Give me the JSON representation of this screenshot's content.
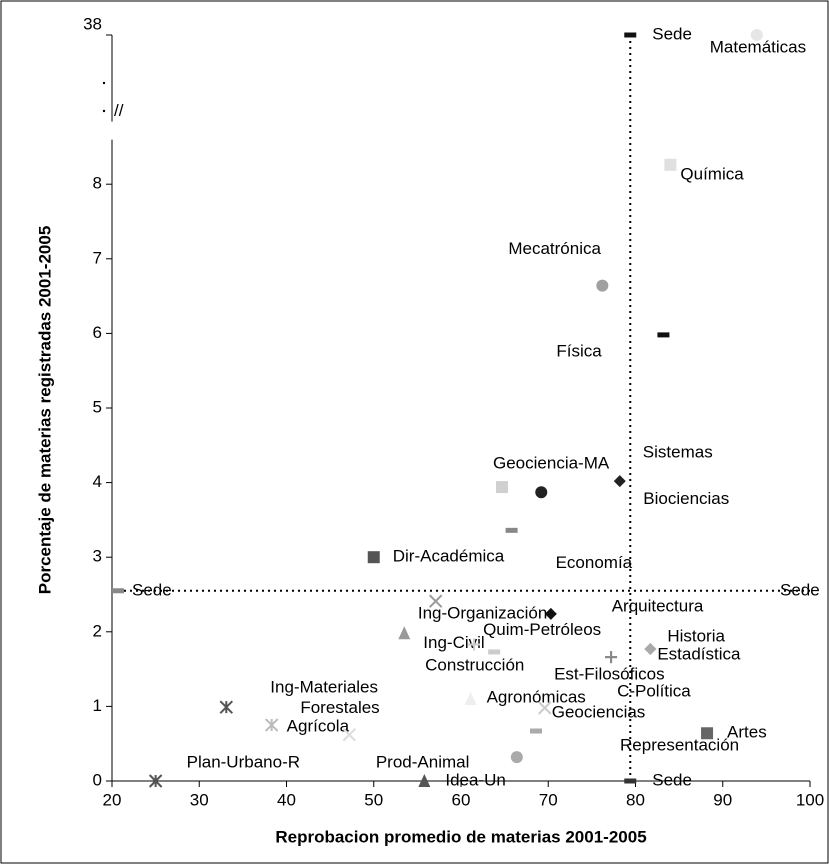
{
  "chart_data": {
    "type": "scatter",
    "x_label": "Reprobacion promedio de materias 2001-2005",
    "y_label": "Porcentaje de materias registradas 2001-2005",
    "xlim": [
      20,
      100
    ],
    "xticks": [
      20,
      30,
      40,
      50,
      60,
      70,
      80,
      90,
      100
    ],
    "ylim": [
      0,
      38
    ],
    "yticks": [
      0,
      1,
      2,
      3,
      4,
      5,
      6,
      7,
      8,
      38
    ],
    "y_break": [
      9,
      37
    ],
    "y_break_label": "//",
    "reference": {
      "x": 79.4,
      "y": 2.55,
      "label": "Sede"
    },
    "points": [
      {
        "name": "Matemáticas",
        "x": 93.9,
        "y": 38,
        "marker": "circle",
        "color": "#e6e6e6"
      },
      {
        "name": "Química",
        "x": 84.0,
        "y": 8.26,
        "marker": "square",
        "color": "#e0e0e0"
      },
      {
        "name": "Mecatrónica",
        "x": 76.2,
        "y": 6.64,
        "marker": "circle",
        "color": "#a0a0a0"
      },
      {
        "name": "Física",
        "x": 83.2,
        "y": 5.98,
        "marker": "dash",
        "color": "#111111"
      },
      {
        "name": "Sistemas",
        "x": 78.2,
        "y": 4.02,
        "marker": "diamond",
        "color": "#222222"
      },
      {
        "name": "Geociencia-MA",
        "x": 64.7,
        "y": 3.94,
        "marker": "square",
        "color": "#d0d0d0"
      },
      {
        "name": "Biociencias",
        "x": 69.2,
        "y": 3.87,
        "marker": "circle",
        "color": "#222222"
      },
      {
        "name": "Economía",
        "x": 65.8,
        "y": 3.36,
        "marker": "dash",
        "color": "#888888"
      },
      {
        "name": "Dir-Académica",
        "x": 50.0,
        "y": 3.0,
        "marker": "square",
        "color": "#555555"
      },
      {
        "name": "Arquitectura",
        "x": 57.1,
        "y": 2.41,
        "marker": "x",
        "color": "#999999"
      },
      {
        "name": "Ing-Organización",
        "x": 70.3,
        "y": 2.24,
        "marker": "diamond",
        "color": "#111111"
      },
      {
        "name": "Ing-Civil",
        "x": 53.5,
        "y": 1.98,
        "marker": "triangle",
        "color": "#999999"
      },
      {
        "name": "Quim-Petróleos",
        "x": 61.5,
        "y": 1.83,
        "marker": "plus",
        "color": "#cccccc"
      },
      {
        "name": "Construcción",
        "x": 63.8,
        "y": 1.73,
        "marker": "dash",
        "color": "#cccccc"
      },
      {
        "name": "Est-Filosóficos",
        "x": 77.2,
        "y": 1.66,
        "marker": "plus",
        "color": "#888888"
      },
      {
        "name": "Historia",
        "x": 81.7,
        "y": 1.77,
        "marker": "diamond",
        "color": "#aaaaaa"
      },
      {
        "name": "Estadística",
        "x": 81.7,
        "y": 1.77,
        "marker": "diamond",
        "color": "#aaaaaa"
      },
      {
        "name": "C-Política",
        "x": 77.2,
        "y": 1.66,
        "marker": "plus",
        "color": "#888888"
      },
      {
        "name": "Agronómicas",
        "x": 61.1,
        "y": 1.1,
        "marker": "triangle",
        "color": "#eeeeee"
      },
      {
        "name": "Geociencias",
        "x": 69.6,
        "y": 0.98,
        "marker": "x",
        "color": "#cccccc"
      },
      {
        "name": "Ing-Materiales",
        "x": 33.1,
        "y": 0.99,
        "marker": "asterisk",
        "color": "#555555"
      },
      {
        "name": "Agrícola",
        "x": 38.3,
        "y": 0.75,
        "marker": "asterisk",
        "color": "#bbbbbb"
      },
      {
        "name": "Forestales",
        "x": 47.2,
        "y": 0.62,
        "marker": "x",
        "color": "#dddddd"
      },
      {
        "name": "Representación",
        "x": 68.6,
        "y": 0.67,
        "marker": "dash",
        "color": "#aaaaaa"
      },
      {
        "name": "Artes",
        "x": 88.2,
        "y": 0.64,
        "marker": "square",
        "color": "#666666"
      },
      {
        "name": "Prod-Animal",
        "x": 66.4,
        "y": 0.32,
        "marker": "circle",
        "color": "#aaaaaa"
      },
      {
        "name": "Idea-Un",
        "x": 55.8,
        "y": 0,
        "marker": "triangle",
        "color": "#555555"
      },
      {
        "name": "Plan-Urbano-R",
        "x": 25.0,
        "y": 0,
        "marker": "asterisk",
        "color": "#555555"
      }
    ]
  }
}
